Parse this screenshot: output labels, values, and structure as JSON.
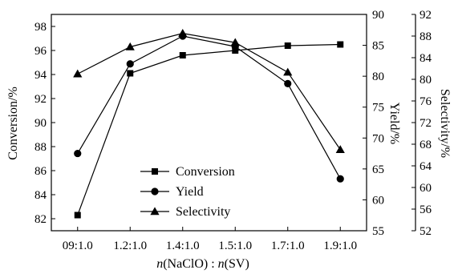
{
  "chart_data": {
    "type": "line",
    "categories": [
      "09:1.0",
      "1.2:1.0",
      "1.4:1.0",
      "1.5:1.0",
      "1.7:1.0",
      "1.9:1.0"
    ],
    "series": [
      {
        "name": "Conversion",
        "axis": "conversion",
        "marker": "square",
        "values": [
          82.3,
          94.1,
          95.6,
          96.0,
          96.4,
          96.5
        ]
      },
      {
        "name": "Yield",
        "axis": "yield",
        "marker": "circle",
        "values": [
          67.5,
          82.0,
          86.5,
          84.8,
          78.8,
          63.4
        ]
      },
      {
        "name": "Selectivity",
        "axis": "selectivity",
        "marker": "triangle",
        "values": [
          81.0,
          86.0,
          88.5,
          86.8,
          81.3,
          67.0
        ]
      }
    ],
    "axes": {
      "conversion": {
        "label": "Conversion/%",
        "min": 81,
        "max": 99,
        "ticks": [
          82,
          84,
          86,
          88,
          90,
          92,
          94,
          96,
          98
        ]
      },
      "yield": {
        "label": "Yield/%",
        "min": 55,
        "max": 90,
        "ticks": [
          55,
          60,
          65,
          70,
          75,
          80,
          85,
          90
        ]
      },
      "selectivity": {
        "label": "Selectivity/%",
        "min": 52,
        "max": 92,
        "ticks": [
          52,
          56,
          60,
          64,
          68,
          72,
          76,
          80,
          84,
          88,
          92
        ]
      }
    },
    "xlabel": {
      "prefix_italic": "n",
      "mid": "(NaClO) : ",
      "mid_italic": "n",
      "suffix": "(SV)"
    },
    "legend_position": "bottom-center",
    "grid": false
  }
}
